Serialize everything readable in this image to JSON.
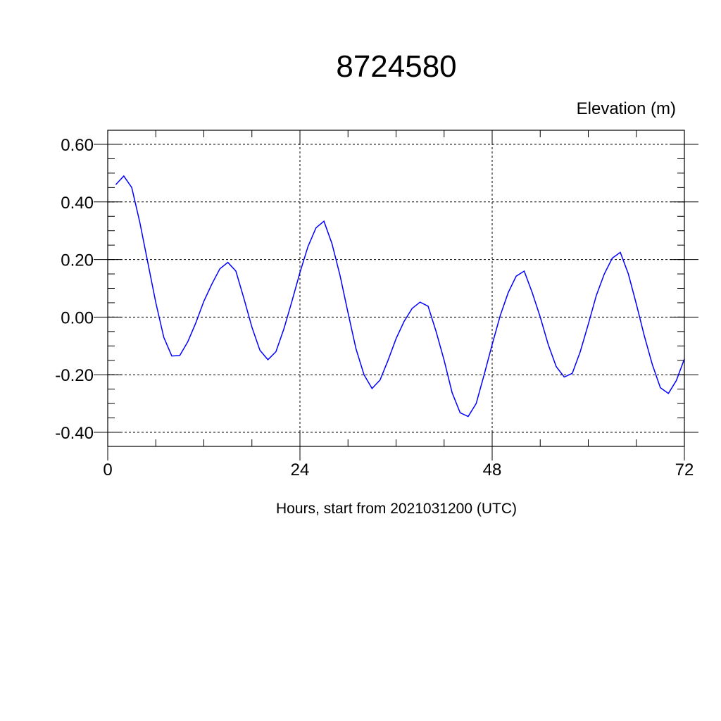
{
  "chart_data": {
    "type": "line",
    "title": "8724580",
    "ylabel": "Elevation (m)",
    "xlabel": "Hours, start from 2021031200 (UTC)",
    "xlim": [
      0,
      72
    ],
    "ylim": [
      -0.4,
      0.6
    ],
    "xticks": [
      0,
      24,
      48,
      72
    ],
    "xtick_labels": [
      "0",
      "24",
      "48",
      "72"
    ],
    "yticks": [
      -0.4,
      -0.2,
      0.0,
      0.2,
      0.4,
      0.6
    ],
    "ytick_labels": [
      "-0.40",
      "-0.20",
      "0.00",
      "0.20",
      "0.40",
      "0.60"
    ],
    "grid": true,
    "line_color": "#0000ff",
    "series": [
      {
        "x": [
          1,
          2,
          3,
          4,
          5,
          6,
          7,
          8,
          9,
          10,
          11,
          12,
          13,
          14,
          15,
          16,
          17,
          18,
          19,
          20,
          21,
          22,
          23,
          24,
          25,
          26,
          27,
          28,
          29,
          30,
          31,
          32,
          33,
          34,
          35,
          36,
          37,
          38,
          39,
          40,
          41,
          42,
          43,
          44,
          45,
          46,
          47,
          48,
          49,
          50,
          51,
          52,
          53,
          54,
          55,
          56,
          57,
          58,
          59,
          60,
          61,
          62,
          63,
          64,
          65,
          66,
          67,
          68,
          69,
          70,
          71,
          72
        ],
        "values": [
          0.46,
          0.49,
          0.45,
          0.33,
          0.19,
          0.05,
          -0.07,
          -0.135,
          -0.133,
          -0.085,
          -0.02,
          0.055,
          0.115,
          0.168,
          0.19,
          0.16,
          0.065,
          -0.035,
          -0.115,
          -0.148,
          -0.12,
          -0.04,
          0.055,
          0.155,
          0.245,
          0.31,
          0.333,
          0.255,
          0.145,
          0.015,
          -0.11,
          -0.2,
          -0.248,
          -0.218,
          -0.15,
          -0.075,
          -0.015,
          0.03,
          0.052,
          0.038,
          -0.05,
          -0.15,
          -0.262,
          -0.332,
          -0.345,
          -0.3,
          -0.2,
          -0.095,
          0.005,
          0.085,
          0.142,
          0.16,
          0.085,
          0.0,
          -0.095,
          -0.172,
          -0.208,
          -0.195,
          -0.12,
          -0.025,
          0.075,
          0.15,
          0.205,
          0.225,
          0.15,
          0.045,
          -0.065,
          -0.165,
          -0.245,
          -0.265,
          -0.22,
          -0.145
        ]
      }
    ]
  }
}
